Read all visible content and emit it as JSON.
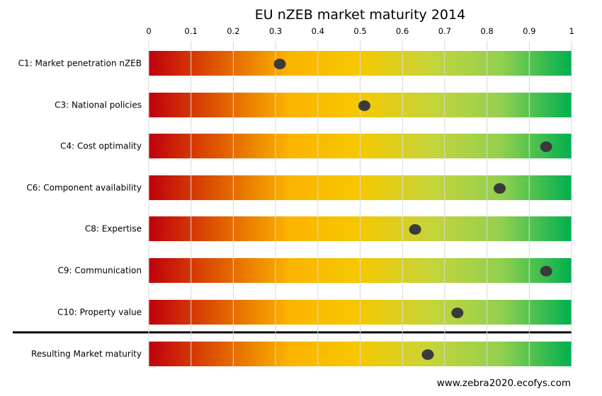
{
  "chart_data": {
    "type": "scatter",
    "title": "EU nZEB market maturity 2014",
    "xlim": [
      0,
      1
    ],
    "xticks": [
      "0",
      "0.1",
      "0.2",
      "0.3",
      "0.4",
      "0.5",
      "0.6",
      "0.7",
      "0.8",
      "0.9",
      "1"
    ],
    "xtick_values": [
      0,
      0.1,
      0.2,
      0.3,
      0.4,
      0.5,
      0.6,
      0.7,
      0.8,
      0.9,
      1
    ],
    "grid": true,
    "gradient_colors": [
      "#c0000c",
      "#e05a00",
      "#fbb400",
      "#f5c800",
      "#c6d43a",
      "#92d050",
      "#00b050"
    ],
    "marker_color": "#3a3a3a",
    "separator_after_row": 6,
    "rows": [
      {
        "label": "C1: Market penetration nZEB",
        "value": 0.31
      },
      {
        "label": "C3: National policies",
        "value": 0.51
      },
      {
        "label": "C4: Cost optimality",
        "value": 0.94
      },
      {
        "label": "C6: Component availability",
        "value": 0.83
      },
      {
        "label": "C8: Expertise",
        "value": 0.63
      },
      {
        "label": "C9: Communication",
        "value": 0.94
      },
      {
        "label": "C10: Property value",
        "value": 0.73
      },
      {
        "label": "Resulting Market maturity",
        "value": 0.66
      }
    ]
  },
  "footer": "www.zebra2020.ecofys.com"
}
